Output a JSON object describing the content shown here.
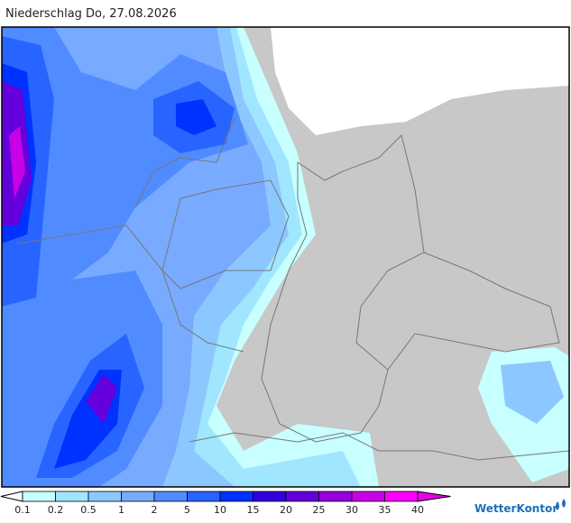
{
  "header": {
    "title": "Niederschlag Do, 27.08.2026"
  },
  "legend": {
    "labels": [
      "0.1",
      "0.2",
      "0.5",
      "1",
      "2",
      "5",
      "10",
      "15",
      "20",
      "25",
      "30",
      "35",
      "40"
    ],
    "colors": [
      "#c8ffff",
      "#a0e6ff",
      "#8cc8ff",
      "#78aaff",
      "#508cff",
      "#2864ff",
      "#0032ff",
      "#3200dc",
      "#6400dc",
      "#9600dc",
      "#c800e6",
      "#ff00ff",
      "#e600e6"
    ]
  },
  "brand": "WetterKontor"
}
